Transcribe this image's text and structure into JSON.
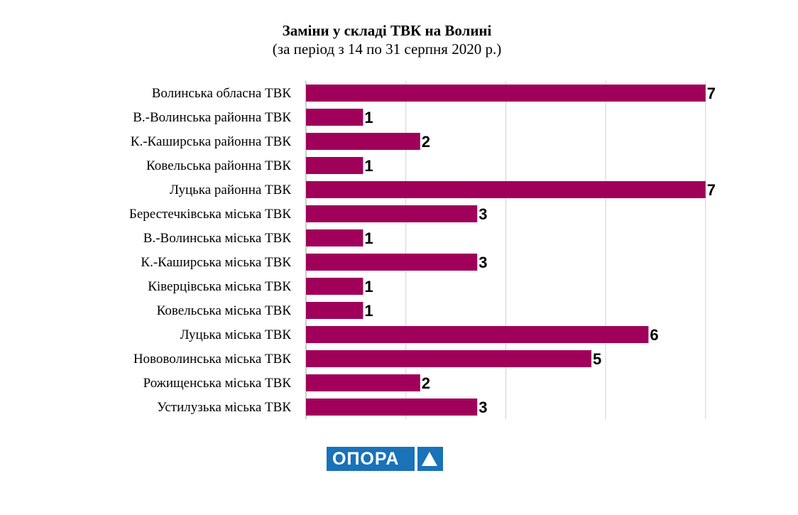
{
  "chart_data": {
    "type": "bar",
    "orientation": "horizontal",
    "title": "Заміни у складі ТВК на Волині",
    "subtitle": "(за період з 14 по 31 серпня 2020 р.)",
    "categories": [
      "Волинська обласна ТВК",
      "В.-Волинська районна ТВК",
      "К.-Каширська районна ТВК",
      "Ковельська районна ТВК",
      "Луцька районна ТВК",
      "Берестечківська міська ТВК",
      "В.-Волинська міська ТВК",
      "К.-Каширська міська ТВК",
      "Ківерцівська міська ТВК",
      "Ковельська міська ТВК",
      "Луцька міська ТВК",
      "Нововолинська міська ТВК",
      "Рожищенська міська ТВК",
      "Устилузька міська ТВК"
    ],
    "values": [
      7,
      1,
      2,
      1,
      7,
      3,
      1,
      3,
      1,
      1,
      6,
      5,
      2,
      3
    ],
    "xlim": [
      0,
      7
    ],
    "grid": true,
    "bar_color": "#a0005a",
    "data_labels": true
  },
  "logo": {
    "text": "ОПОРА",
    "color": "#1a72b8"
  }
}
